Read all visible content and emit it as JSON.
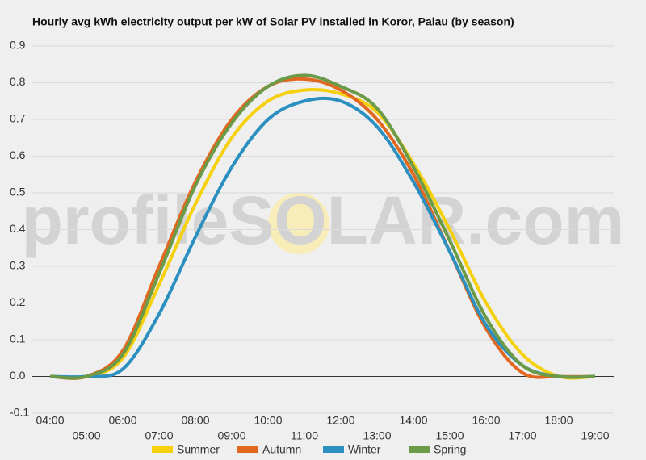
{
  "chart_data": {
    "type": "line",
    "title": "Hourly avg kWh electricity output per kW of Solar PV installed in Koror, Palau (by season)",
    "watermark": "profileSOLAR.com",
    "categories": [
      "04:00",
      "05:00",
      "06:00",
      "07:00",
      "08:00",
      "09:00",
      "10:00",
      "11:00",
      "12:00",
      "13:00",
      "14:00",
      "15:00",
      "16:00",
      "17:00",
      "18:00",
      "19:00"
    ],
    "series": [
      {
        "name": "Summer",
        "color": "#f5d00c",
        "values": [
          0,
          0,
          0.05,
          0.25,
          0.47,
          0.65,
          0.75,
          0.78,
          0.77,
          0.72,
          0.58,
          0.4,
          0.2,
          0.06,
          0,
          0
        ]
      },
      {
        "name": "Autumn",
        "color": "#e2681f",
        "values": [
          0,
          0,
          0.07,
          0.3,
          0.53,
          0.7,
          0.79,
          0.81,
          0.78,
          0.7,
          0.55,
          0.34,
          0.13,
          0.01,
          0,
          0
        ]
      },
      {
        "name": "Winter",
        "color": "#2b8fbf",
        "values": [
          0,
          0,
          0.02,
          0.17,
          0.38,
          0.57,
          0.7,
          0.75,
          0.75,
          0.68,
          0.53,
          0.34,
          0.14,
          0.03,
          0,
          0
        ]
      },
      {
        "name": "Spring",
        "color": "#6b9a48",
        "values": [
          0,
          0,
          0.06,
          0.28,
          0.52,
          0.69,
          0.79,
          0.82,
          0.79,
          0.73,
          0.57,
          0.37,
          0.16,
          0.03,
          0,
          0
        ]
      }
    ],
    "ylim": [
      -0.1,
      0.9
    ],
    "yticks": [
      -0.1,
      {
        "value": 0,
        "label": "0.0"
      },
      0.1,
      0.2,
      0.3,
      0.4,
      0.5,
      0.6,
      0.7,
      0.8,
      0.9
    ],
    "grid": true,
    "legend": "bottom"
  }
}
